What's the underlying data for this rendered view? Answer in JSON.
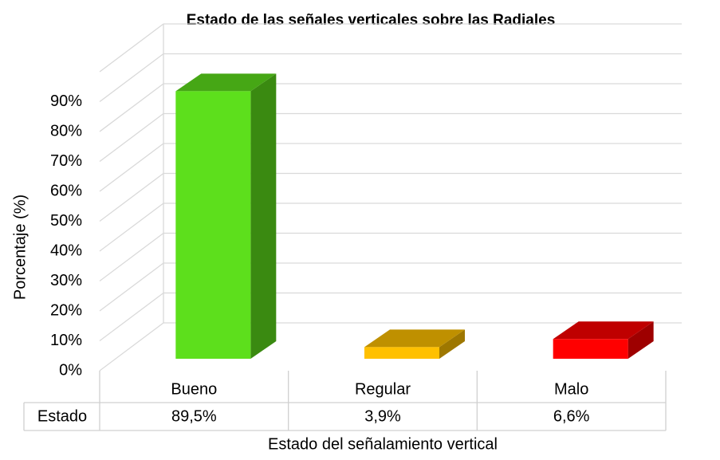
{
  "chart_data": {
    "type": "bar3d",
    "title": "Estado de las señales verticales sobre las Radiales",
    "y_label": "Porcentaje (%)",
    "x_label": "Estado del señalamiento vertical",
    "categories": [
      "Bueno",
      "Regular",
      "Malo"
    ],
    "series": [
      {
        "name": "Estado",
        "colors": [
          "#5ddf1c",
          "#ffc000",
          "#ff0000"
        ],
        "values": [
          89.5,
          3.9,
          6.6
        ],
        "value_labels": [
          "89,5%",
          "3,9%",
          "6,6%"
        ]
      }
    ],
    "ylim": [
      0,
      100
    ],
    "yticks": [
      {
        "value": 0,
        "label": "0%"
      },
      {
        "value": 10,
        "label": "10%"
      },
      {
        "value": 20,
        "label": "20%"
      },
      {
        "value": 30,
        "label": "30%"
      },
      {
        "value": 40,
        "label": "40%"
      },
      {
        "value": 50,
        "label": "50%"
      },
      {
        "value": 60,
        "label": "60%"
      },
      {
        "value": 70,
        "label": "70%"
      },
      {
        "value": 80,
        "label": "80%"
      },
      {
        "value": 90,
        "label": "90%"
      }
    ],
    "grid": true
  }
}
